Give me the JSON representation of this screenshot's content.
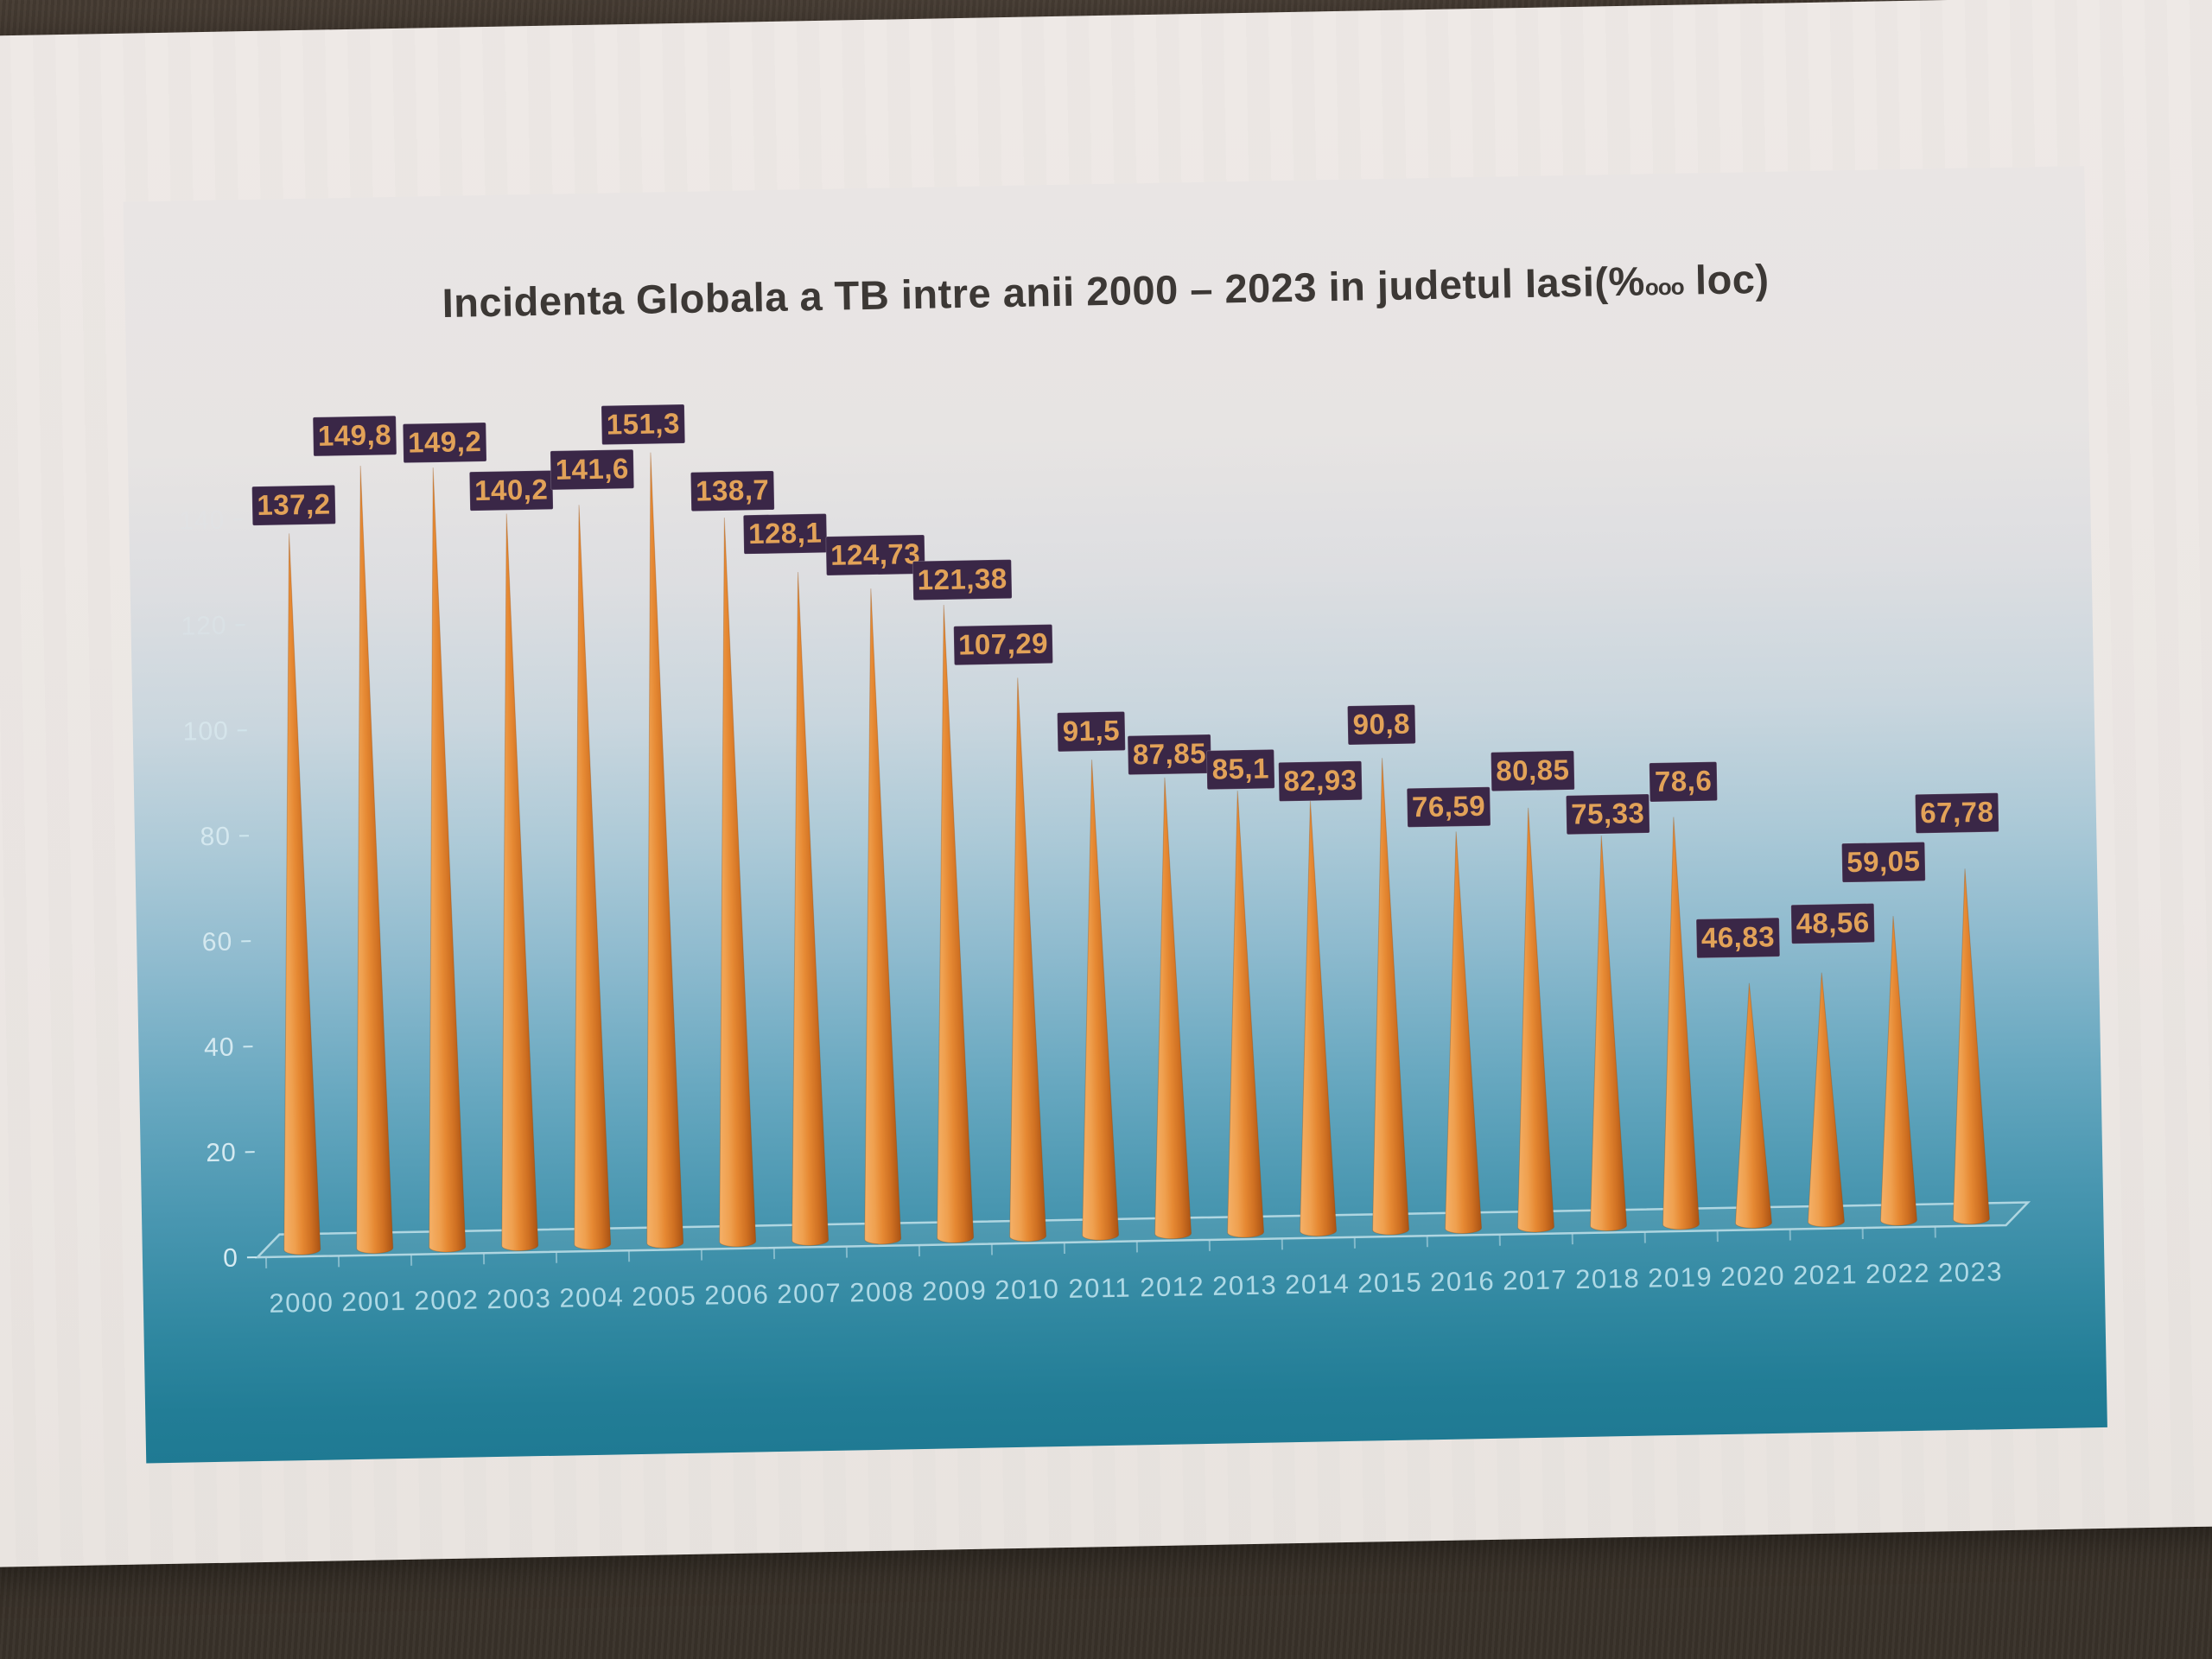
{
  "chart": {
    "title_prefix": "Incidenta Globala a TB intre anii 2000 – 2023 in judetul Iasi(%",
    "title_permille": "ooo",
    "title_suffix": " loc)"
  },
  "chart_data": {
    "type": "bar",
    "bar_shape": "cone",
    "title": "Incidenta Globala a TB intre anii 2000 – 2023 in judetul Iasi(%ooo loc)",
    "categories": [
      "2000",
      "2001",
      "2002",
      "2003",
      "2004",
      "2005",
      "2006",
      "2007",
      "2008",
      "2009",
      "2010",
      "2011",
      "2012",
      "2013",
      "2014",
      "2015",
      "2016",
      "2017",
      "2018",
      "2019",
      "2020",
      "2021",
      "2022",
      "2023"
    ],
    "values": [
      137.2,
      149.8,
      149.2,
      140.2,
      141.6,
      151.3,
      138.7,
      128.1,
      124.73,
      121.38,
      107.29,
      91.5,
      87.85,
      85.1,
      82.93,
      90.8,
      76.59,
      80.85,
      75.33,
      78.6,
      46.83,
      48.56,
      59.05,
      67.78
    ],
    "value_labels": [
      "137,2",
      "149,8",
      "149,2",
      "140,2",
      "141,6",
      "151,3",
      "138,7",
      "128,1",
      "124,73",
      "121,38",
      "107,29",
      "91,5",
      "87,85",
      "85,1",
      "82,93",
      "90,8",
      "76,59",
      "80,85",
      "75,33",
      "78,6",
      "46,83",
      "48,56",
      "59,05",
      "67,78"
    ],
    "xlabel": "",
    "ylabel": "",
    "ylim": [
      0,
      160
    ],
    "yticks": [
      0,
      20,
      40,
      60,
      80,
      100,
      120,
      140
    ],
    "grid": false,
    "legend": false
  },
  "colors": {
    "table_surface": "#52463c",
    "paper": "#ece7e4",
    "print_top": "#e9e5e4",
    "print_bottom": "#1f7a93",
    "title_text": "#3c3835",
    "cone_light": "#f5b169",
    "cone_mid": "#e68933",
    "cone_dark": "#aa5314",
    "label_box": "#3a2747",
    "label_text": "#e2a258",
    "axis_line": "#d7eef4",
    "axis_tick_text": "#dff0f5",
    "year_text": "#b5dde9"
  }
}
